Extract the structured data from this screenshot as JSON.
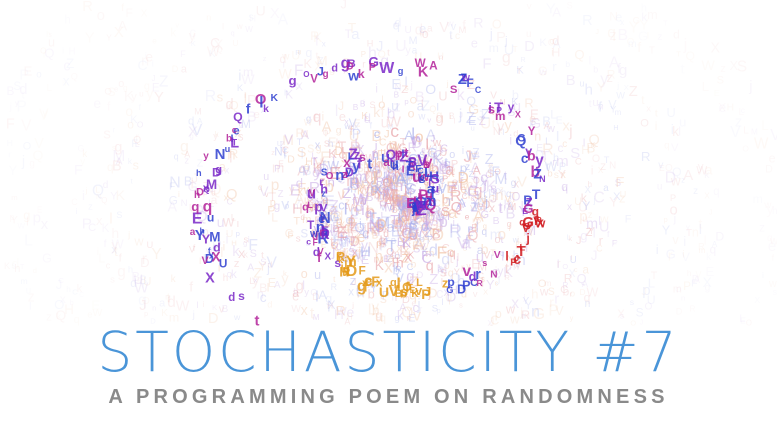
{
  "artwork": {
    "alphabet": "ABCDEFGHIJKLMNOPQRSTUVWXYZabcdefghijklmnopqrstuvwxyz",
    "colors": {
      "faint_pink": "#e8a4a8",
      "faint_blue": "#a9b0ec",
      "faint_peach": "#f1c2a4",
      "faint_violet": "#c6a8e4",
      "bold_blue": "#2f3fd0",
      "bold_purple": "#7a28c8",
      "bold_magenta": "#b3229a",
      "bold_red": "#d01a20",
      "bold_orange": "#e49a1a"
    }
  },
  "title": {
    "text": "STOCHASTICITY #7",
    "color": "#4a95d8"
  },
  "subtitle": {
    "text": "A PROGRAMMING POEM ON RANDOMNESS",
    "color": "#8a8a8a"
  }
}
